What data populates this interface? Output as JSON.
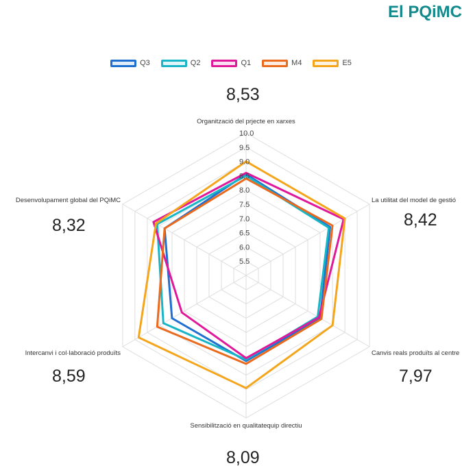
{
  "title": "El PQiMC",
  "averages": [
    "8,53",
    "8,42",
    "7,97",
    "8,09",
    "8,59",
    "8,32"
  ],
  "chart_data": {
    "type": "radar",
    "axes": [
      "Organització del prjecte en xarxes",
      "La utilitat del model de gestió",
      "Canvis reals produïts al centre",
      "Sensibilització en qualitatequip directiu",
      "Intercanvi i col·laboració produïts",
      "Desenvolupament global del PQiMC"
    ],
    "ticks": [
      "5.5",
      "6.0",
      "6.5",
      "7.0",
      "7.5",
      "8.0",
      "8.5",
      "9.0",
      "9.5",
      "10.0"
    ],
    "rlim": [
      5.0,
      10.0
    ],
    "series": [
      {
        "name": "Q3",
        "color": "#1f6fd0",
        "values": [
          8.55,
          8.4,
          8.0,
          8.0,
          8.0,
          8.3
        ]
      },
      {
        "name": "Q2",
        "color": "#17b5c6",
        "values": [
          8.5,
          8.35,
          7.9,
          7.95,
          8.35,
          8.6
        ]
      },
      {
        "name": "Q1",
        "color": "#e0189a",
        "values": [
          8.6,
          8.95,
          7.95,
          7.9,
          7.6,
          8.75
        ]
      },
      {
        "name": "M4",
        "color": "#ea6a1e",
        "values": [
          8.4,
          8.5,
          8.05,
          8.1,
          8.6,
          8.3
        ]
      },
      {
        "name": "E5",
        "color": "#f5a51b",
        "values": [
          9.0,
          9.0,
          8.5,
          8.95,
          9.35,
          8.65
        ]
      }
    ]
  }
}
